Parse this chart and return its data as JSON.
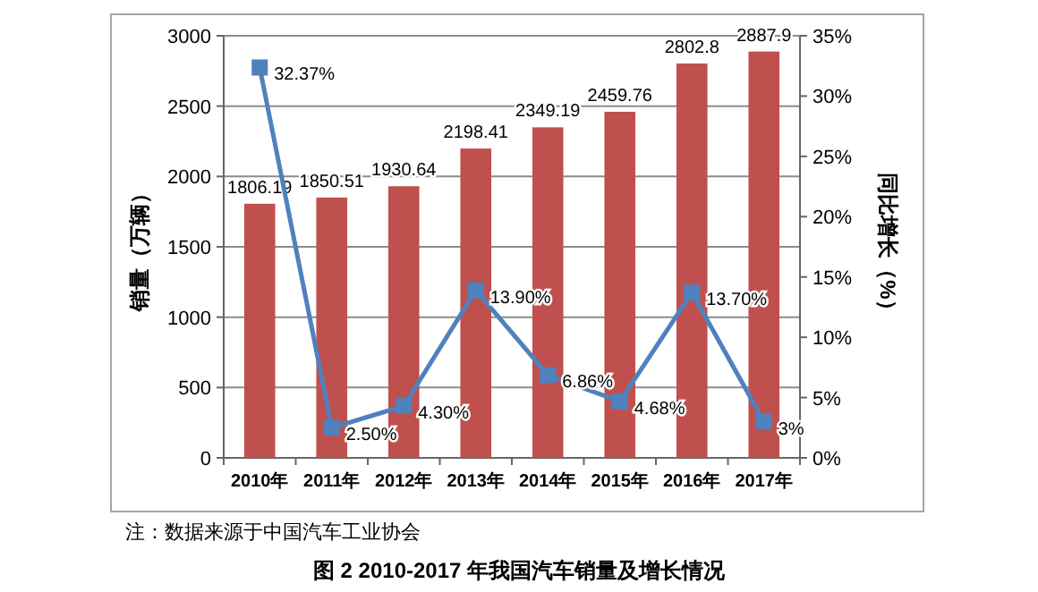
{
  "chart_data": {
    "type": "bar",
    "title": "图 2   2010-2017 年我国汽车销量及增长情况",
    "ylabel": "销量（万辆）",
    "y2label": "同比增长（%）",
    "annotations": [
      "注：数据来源于中国汽车工业协会"
    ],
    "categories": [
      "2010年",
      "2011年",
      "2012年",
      "2013年",
      "2014年",
      "2015年",
      "2016年",
      "2017年"
    ],
    "series": [
      {
        "color": "#c0504d",
        "values": [
          1806.19,
          1850.51,
          1930.64,
          2198.41,
          2349.19,
          2459.76,
          2802.8,
          2887.9
        ],
        "value_labels": [
          "1806.19",
          "1850.51",
          "1930.64",
          "2198.41",
          "2349.19",
          "2459.76",
          "2802.8",
          "2887.9"
        ]
      },
      {
        "type": "line",
        "axis": "y2",
        "color": "#4f81bd",
        "marker": "square",
        "values": [
          32.37,
          2.5,
          4.3,
          13.9,
          6.86,
          4.68,
          13.7,
          3
        ],
        "value_labels": [
          "32.37%",
          "2.50%",
          "4.30%",
          "13.90%",
          "6.86%",
          "4.68%",
          "13.70%",
          "3%"
        ]
      }
    ],
    "ylim": [
      0,
      3000
    ],
    "yticks": [
      0,
      500,
      1000,
      1500,
      2000,
      2500,
      3000
    ],
    "y2lim": [
      0,
      35
    ],
    "y2ticks": [
      {
        "value": 0,
        "label": "0%"
      },
      {
        "value": 5,
        "label": "5%"
      },
      {
        "value": 10,
        "label": "10%"
      },
      {
        "value": 15,
        "label": "15%"
      },
      {
        "value": 20,
        "label": "20%"
      },
      {
        "value": 25,
        "label": "25%"
      },
      {
        "value": 30,
        "label": "30%"
      },
      {
        "value": 35,
        "label": "35%"
      }
    ],
    "grid": "y"
  }
}
